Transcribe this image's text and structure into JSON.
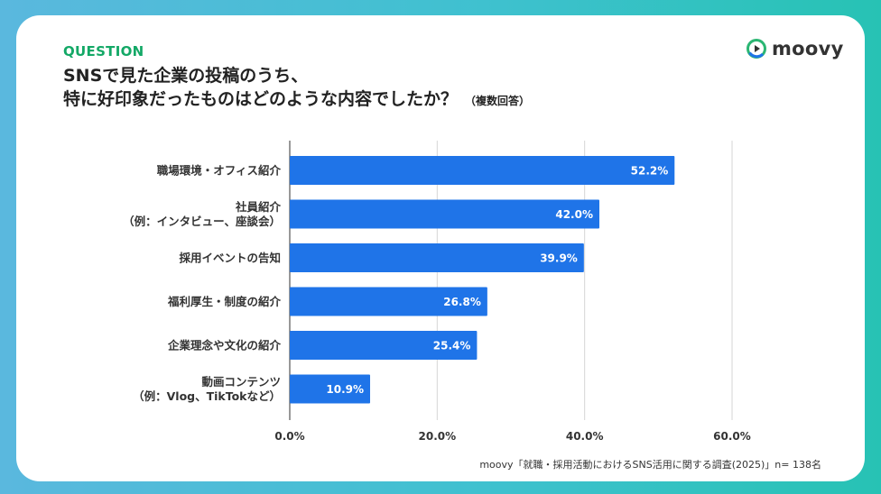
{
  "header": {
    "question_label": "QUESTION",
    "title_line1": "SNSで見た企業の投稿のうち、",
    "title_line2": "特に好印象だったものはどのような内容でしたか？",
    "title_note": "（複数回答）"
  },
  "logo": {
    "text": "moovy",
    "icon": "play-circle-icon"
  },
  "source": "moovy「就職・採用活動におけるSNS活用に関する調査(2025)」n= 138名",
  "colors": {
    "bar": "#1f74e8",
    "accent": "#13a866",
    "grid": "#d6d6d6",
    "axis": "#555555"
  },
  "chart_data": {
    "type": "bar",
    "orientation": "horizontal",
    "categories": [
      [
        "職場環境・オフィス紹介"
      ],
      [
        "社員紹介",
        "（例：インタビュー、座談会）"
      ],
      [
        "採用イベントの告知"
      ],
      [
        "福利厚生・制度の紹介"
      ],
      [
        "企業理念や文化の紹介"
      ],
      [
        "動画コンテンツ",
        "（例：Vlog、TikTokなど）"
      ]
    ],
    "values": [
      52.2,
      42.0,
      39.9,
      26.8,
      25.4,
      10.9
    ],
    "value_labels": [
      "52.2%",
      "42.0%",
      "39.9%",
      "26.8%",
      "25.4%",
      "10.9%"
    ],
    "xlim": [
      0,
      60
    ],
    "ticks": [
      0,
      20,
      40,
      60
    ],
    "tick_labels": [
      "0.0%",
      "20.0%",
      "40.0%",
      "60.0%"
    ],
    "grid": true,
    "legend": "none"
  }
}
